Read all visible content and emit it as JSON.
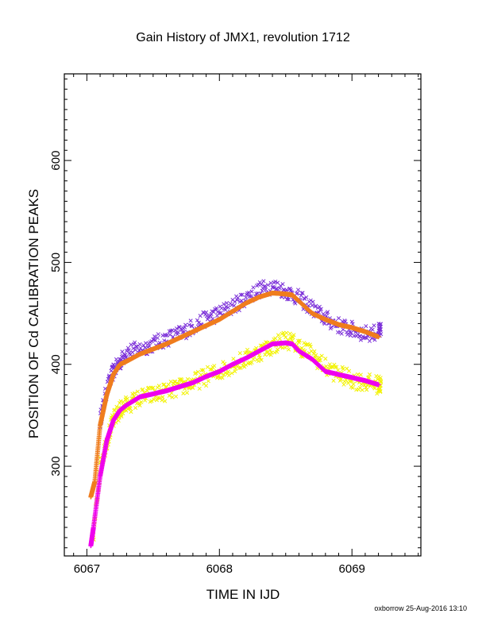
{
  "chart_data": {
    "type": "scatter",
    "title": "Gain History of JMX1, revolution 1712",
    "xlabel": "TIME IN IJD",
    "ylabel": "POSITION OF Cd CALIBRATION PEAKS",
    "xlim": [
      6066.83,
      6069.52
    ],
    "ylim": [
      212,
      685
    ],
    "x_ticks": [
      6067,
      6068,
      6069
    ],
    "y_ticks": [
      300,
      400,
      500,
      600
    ],
    "grid": false,
    "legend": "none",
    "series": [
      {
        "marker": "x",
        "color": "#7b2fd8",
        "x": [
          6067.1,
          6067.15,
          6067.2,
          6067.25,
          6067.3,
          6067.4,
          6067.5,
          6067.6,
          6067.7,
          6067.8,
          6067.9,
          6068.0,
          6068.1,
          6068.2,
          6068.3,
          6068.4,
          6068.5,
          6068.6,
          6068.7,
          6068.8,
          6068.9,
          6069.0,
          6069.1,
          6069.2
        ],
        "y": [
          345,
          375,
          393,
          402,
          412,
          415,
          420,
          425,
          430,
          437,
          445,
          450,
          457,
          465,
          473,
          477,
          472,
          465,
          455,
          445,
          438,
          434,
          430,
          432
        ],
        "spread": 8
      },
      {
        "marker": "x",
        "color": "#f2f200",
        "x": [
          6067.05,
          6067.1,
          6067.15,
          6067.2,
          6067.25,
          6067.3,
          6067.4,
          6067.5,
          6067.6,
          6067.7,
          6067.8,
          6067.9,
          6068.0,
          6068.1,
          6068.2,
          6068.3,
          6068.4,
          6068.5,
          6068.6,
          6068.7,
          6068.8,
          6068.9,
          6069.0,
          6069.1,
          6069.2
        ],
        "y": [
          232,
          300,
          325,
          345,
          355,
          360,
          367,
          370,
          373,
          377,
          382,
          388,
          393,
          400,
          405,
          412,
          418,
          425,
          418,
          410,
          397,
          390,
          385,
          382,
          380
        ],
        "spread": 9
      },
      {
        "marker": "+",
        "color": "#ef7d1e",
        "x": [
          6067.03,
          6067.06,
          6067.1,
          6067.15,
          6067.2,
          6067.25,
          6067.3,
          6067.4,
          6067.5,
          6067.6,
          6067.7,
          6067.8,
          6067.9,
          6068.0,
          6068.1,
          6068.2,
          6068.3,
          6068.4,
          6068.5,
          6068.55,
          6068.6,
          6068.7,
          6068.8,
          6068.9,
          6069.0,
          6069.1,
          6069.2
        ],
        "y": [
          270,
          285,
          340,
          370,
          390,
          400,
          403,
          410,
          415,
          420,
          426,
          432,
          438,
          444,
          452,
          460,
          466,
          470,
          469,
          468,
          462,
          450,
          444,
          439,
          436,
          432,
          427
        ]
      },
      {
        "marker": "+",
        "color": "#ee00ee",
        "x": [
          6067.03,
          6067.05,
          6067.1,
          6067.15,
          6067.2,
          6067.25,
          6067.3,
          6067.4,
          6067.5,
          6067.6,
          6067.7,
          6067.8,
          6067.9,
          6068.0,
          6068.1,
          6068.2,
          6068.3,
          6068.4,
          6068.5,
          6068.55,
          6068.6,
          6068.7,
          6068.8,
          6068.9,
          6069.0,
          6069.1,
          6069.2
        ],
        "y": [
          222,
          240,
          290,
          325,
          345,
          355,
          360,
          368,
          371,
          374,
          378,
          382,
          388,
          393,
          400,
          406,
          413,
          420,
          421,
          420,
          413,
          405,
          393,
          390,
          387,
          384,
          380
        ]
      }
    ]
  },
  "footer": "oxborrow 25-Aug-2016 13:10"
}
